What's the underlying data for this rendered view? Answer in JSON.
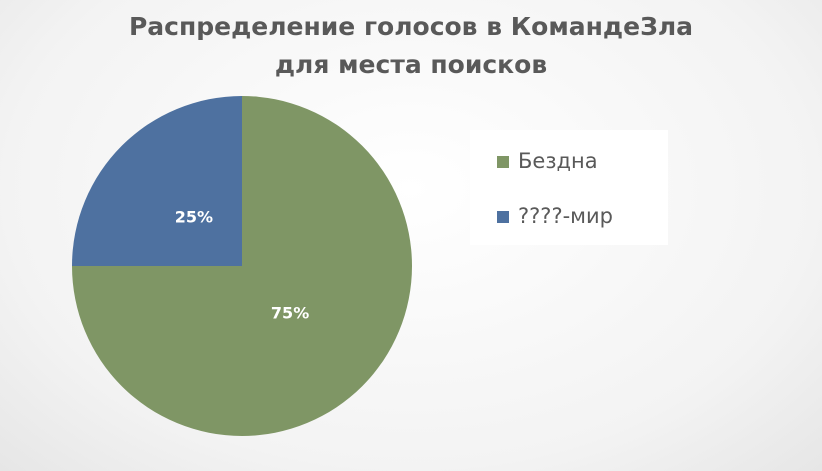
{
  "chart_data": {
    "type": "pie",
    "title": "Распределение голосов в КомандеЗла для места поисков",
    "categories": [
      "Бездна",
      "????-мир"
    ],
    "values": [
      75,
      25
    ],
    "value_labels": [
      "75%",
      "25%"
    ],
    "colors": [
      "#7f9665",
      "#4e71a0"
    ],
    "legend": "right"
  }
}
